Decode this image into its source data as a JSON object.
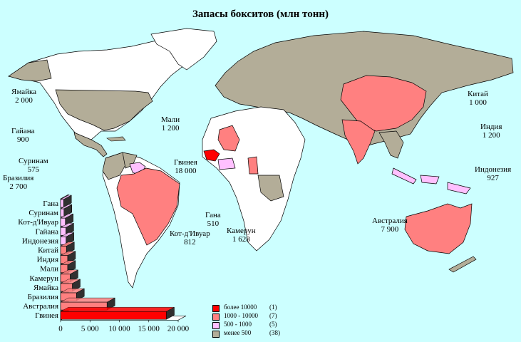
{
  "title": "Запасы бокситов (млн тонн)",
  "colors": {
    "water": "#ccffff",
    "land": "#ffffff",
    "over_10000": "#ff0000",
    "range_1000_10000": "#ff8080",
    "range_500_1000": "#ffc0ff",
    "under_500": "#b3ad98"
  },
  "map_labels": [
    {
      "name": "Ямайка",
      "value": "2 000"
    },
    {
      "name": "Гайана",
      "value": "900"
    },
    {
      "name": "Суринам",
      "value": "575"
    },
    {
      "name": "Бразилия",
      "value": "2 700"
    },
    {
      "name": "Мали",
      "value": "1 200"
    },
    {
      "name": "Гвинея",
      "value": "18 000"
    },
    {
      "name": "Гана",
      "value": "510"
    },
    {
      "name": "Кот-д'Ивуар",
      "value": "812"
    },
    {
      "name": "Камерун",
      "value": "1 628"
    },
    {
      "name": "Китай",
      "value": "1 000"
    },
    {
      "name": "Индия",
      "value": "1 200"
    },
    {
      "name": "Индонезия",
      "value": "927"
    },
    {
      "name": "Австралия",
      "value": "7 900"
    }
  ],
  "legend": [
    {
      "label": "более 10000",
      "count": "(1)",
      "color": "#ff0000"
    },
    {
      "label": "1000 - 10000",
      "count": "(7)",
      "color": "#ff8080"
    },
    {
      "label": "500 - 1000",
      "count": "(5)",
      "color": "#ffc0ff"
    },
    {
      "label": "менее 500",
      "count": "(38)",
      "color": "#b3ad98"
    }
  ],
  "chart_data": {
    "type": "bar",
    "orientation": "horizontal",
    "categories": [
      "Гана",
      "Суринам",
      "Кот-д'Ивуар",
      "Гайана",
      "Индонезия",
      "Китай",
      "Индия",
      "Мали",
      "Камерун",
      "Ямайка",
      "Бразилия",
      "Австралия",
      "Гвинея"
    ],
    "values": [
      510,
      575,
      812,
      900,
      927,
      1000,
      1200,
      1200,
      1628,
      2000,
      2700,
      7900,
      18000
    ],
    "colors": [
      "#ffc0ff",
      "#ffc0ff",
      "#ffc0ff",
      "#ffc0ff",
      "#ffc0ff",
      "#ff8080",
      "#ff8080",
      "#ff8080",
      "#ff8080",
      "#ff8080",
      "#ff8080",
      "#ff8080",
      "#ff0000"
    ],
    "xticks": [
      "0",
      "5 000",
      "10 000",
      "15 000",
      "20 000"
    ],
    "xlim": [
      0,
      20000
    ]
  }
}
